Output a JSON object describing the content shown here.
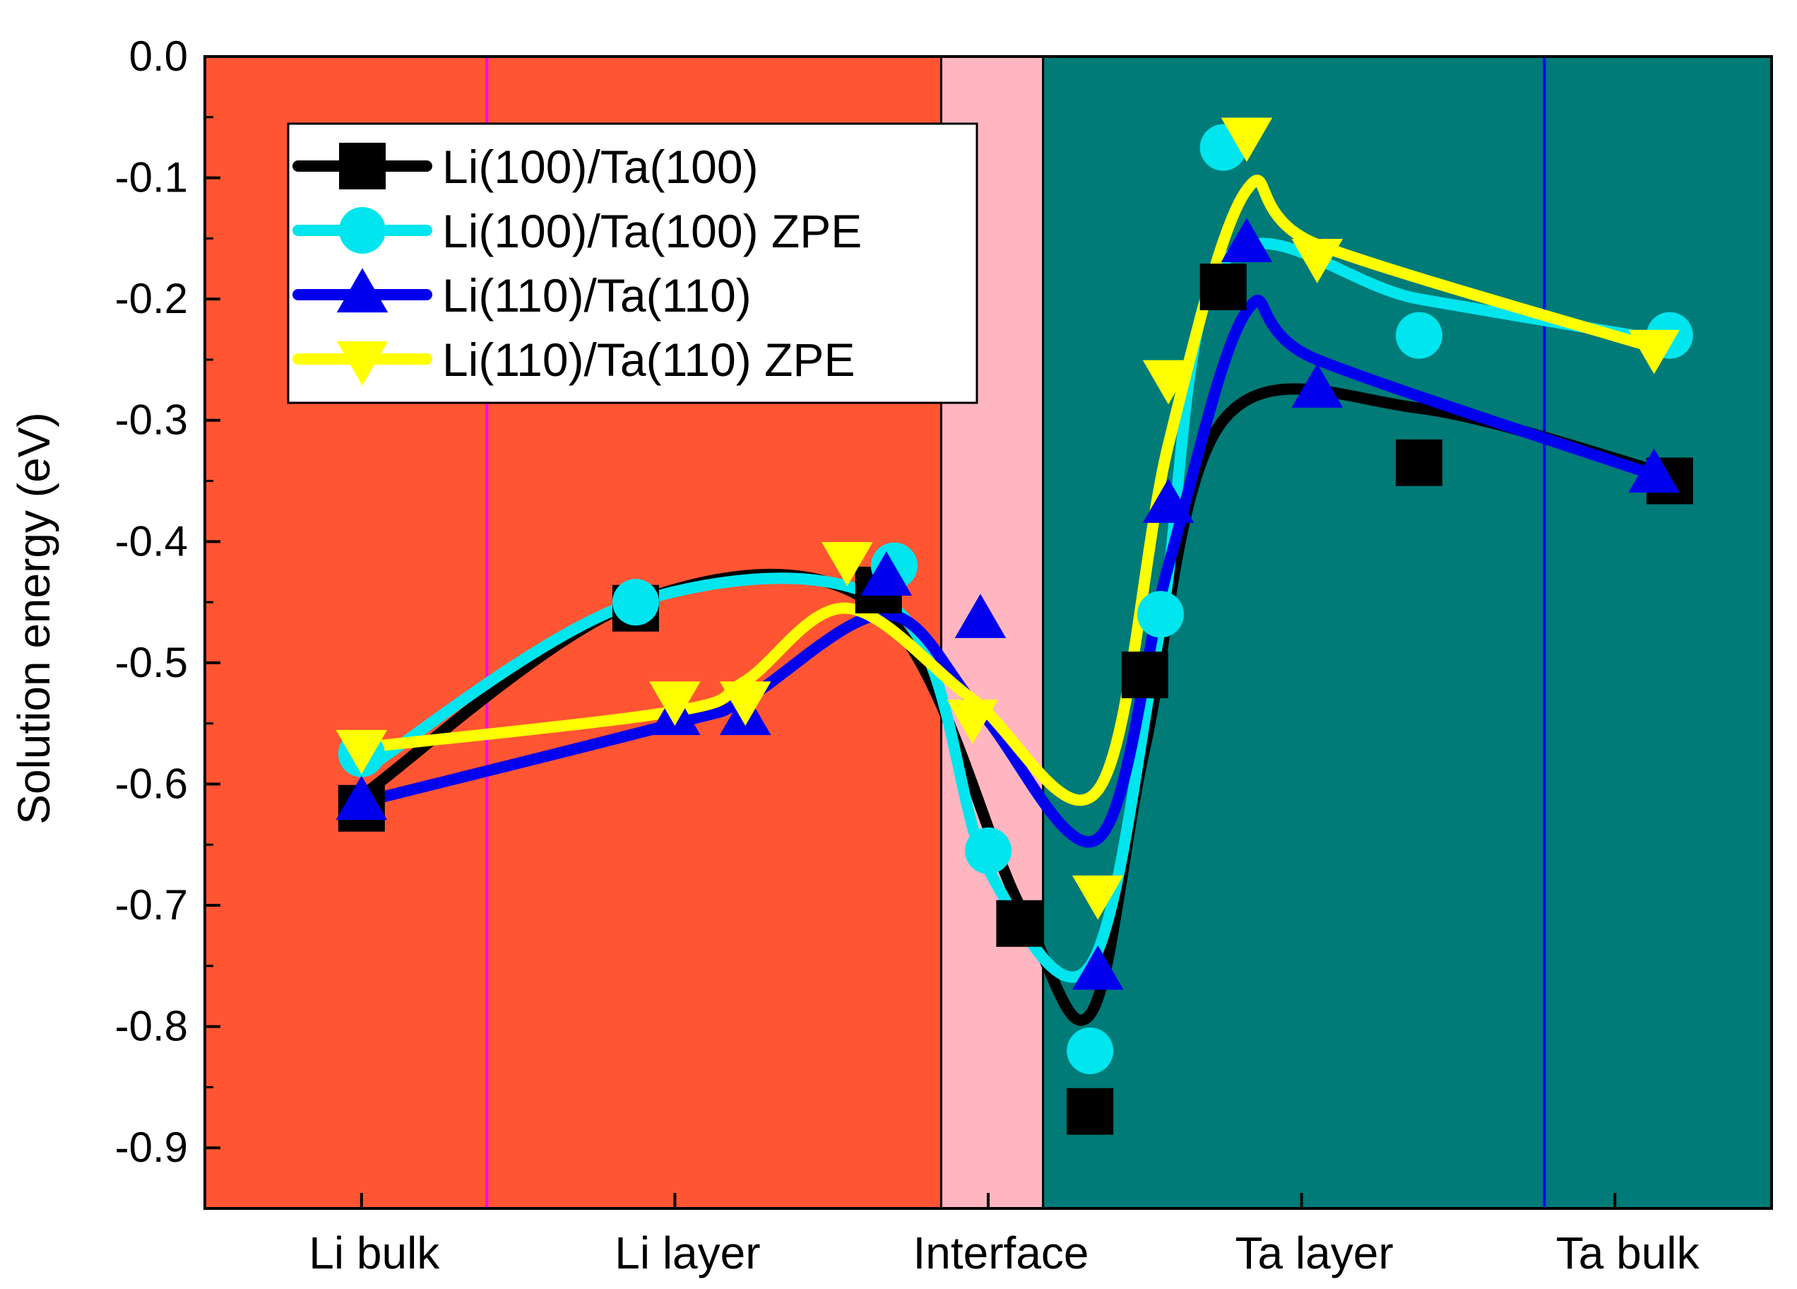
{
  "chart_data": {
    "type": "line",
    "title": "",
    "xlabel": "",
    "ylabel": "Solution energy (eV)",
    "ylim": [
      -0.95,
      0.0
    ],
    "yticks": [
      0.0,
      -0.1,
      -0.2,
      -0.3,
      -0.4,
      -0.5,
      -0.6,
      -0.7,
      -0.8,
      -0.9
    ],
    "ytick_labels": [
      "0.0",
      "-0.1",
      "-0.2",
      "-0.3",
      "-0.4",
      "-0.5",
      "-0.6",
      "-0.7",
      "-0.8",
      "-0.9"
    ],
    "xlim": [
      0,
      10
    ],
    "categories": [
      {
        "label": "Li bulk",
        "x": 1.0
      },
      {
        "label": "Li layer",
        "x": 3.0
      },
      {
        "label": "Interface",
        "x": 5.0
      },
      {
        "label": "Ta layer",
        "x": 7.0
      },
      {
        "label": "Ta bulk",
        "x": 9.0
      }
    ],
    "regions": [
      {
        "x0": 0,
        "x1": 4.7,
        "color": "#ff5533"
      },
      {
        "x0": 4.7,
        "x1": 5.35,
        "color": "#ffb6c1"
      },
      {
        "x0": 5.35,
        "x1": 10,
        "color": "#007b78"
      }
    ],
    "divider_lines": [
      {
        "x": 1.8,
        "color": "#ff00ff"
      },
      {
        "x": 8.55,
        "color": "#0000ff"
      }
    ],
    "legend_position": "top-left",
    "series": [
      {
        "name": "Li(100)/Ta(100)",
        "color": "#000000",
        "marker": "square",
        "x": [
          1.0,
          2.75,
          4.3,
          5.2,
          5.65,
          6.0,
          6.5,
          7.75,
          9.35
        ],
        "y": [
          -0.62,
          -0.455,
          -0.44,
          -0.715,
          -0.87,
          -0.51,
          -0.19,
          -0.335,
          -0.35
        ],
        "curve_y": [
          -0.61,
          -0.45,
          -0.455,
          -0.7,
          -0.79,
          -0.57,
          -0.3,
          -0.29,
          -0.345
        ]
      },
      {
        "name": "Li(100)/Ta(100) ZPE",
        "color": "#00e5ee",
        "marker": "circle",
        "x": [
          1.0,
          2.75,
          4.4,
          5.0,
          5.65,
          6.1,
          6.5,
          7.75,
          9.35
        ],
        "y": [
          -0.575,
          -0.45,
          -0.42,
          -0.655,
          -0.82,
          -0.46,
          -0.075,
          -0.23,
          -0.23
        ],
        "curve_y": [
          -0.59,
          -0.45,
          -0.455,
          -0.67,
          -0.75,
          -0.47,
          -0.17,
          -0.2,
          -0.235
        ]
      },
      {
        "name": "Li(110)/Ta(110)",
        "color": "#0000ee",
        "marker": "triangle-up",
        "x": [
          1.0,
          3.0,
          3.45,
          4.35,
          4.95,
          5.7,
          6.15,
          6.65,
          7.1,
          9.25
        ],
        "y": [
          -0.615,
          -0.545,
          -0.545,
          -0.43,
          -0.465,
          -0.755,
          -0.37,
          -0.155,
          -0.275,
          -0.345
        ],
        "curve_y": [
          -0.615,
          -0.55,
          -0.53,
          -0.46,
          -0.54,
          -0.645,
          -0.42,
          -0.21,
          -0.25,
          -0.345
        ]
      },
      {
        "name": "Li(110)/Ta(110) ZPE",
        "color": "#ffff00",
        "marker": "triangle-down",
        "x": [
          1.0,
          3.0,
          3.45,
          4.1,
          4.9,
          5.7,
          6.15,
          6.65,
          7.1,
          9.25
        ],
        "y": [
          -0.57,
          -0.53,
          -0.53,
          -0.415,
          -0.545,
          -0.69,
          -0.265,
          -0.065,
          -0.165,
          -0.24
        ],
        "curve_y": [
          -0.57,
          -0.54,
          -0.515,
          -0.455,
          -0.53,
          -0.605,
          -0.32,
          -0.11,
          -0.155,
          -0.24
        ]
      }
    ]
  }
}
